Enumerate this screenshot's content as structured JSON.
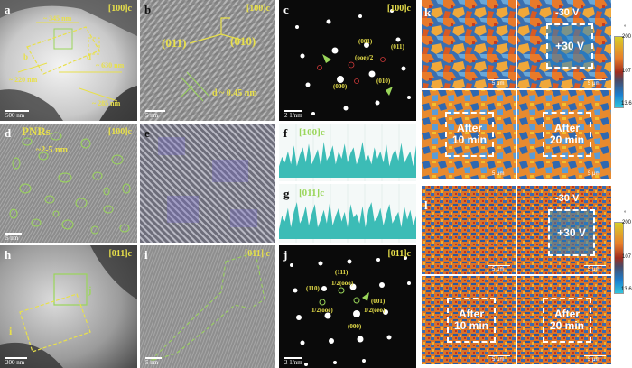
{
  "panels": {
    "a": {
      "label": "a",
      "zone": "[100]c",
      "dims": [
        "~ 345 nm",
        "b",
        "d",
        "~ 630 nm",
        "~ 220 nm",
        "~ 285 nm"
      ],
      "scale": "500 nm"
    },
    "b": {
      "label": "b",
      "zone": "[100]c",
      "plane1": "(011)",
      "plane2": "(010)",
      "spacing": "d ~ 0.45 nm",
      "scale": "5 nm"
    },
    "c": {
      "label": "c",
      "zone": "[100]c",
      "spots": [
        "(001)",
        "(011)",
        "(ooe)/2",
        "(000)",
        "(010)"
      ],
      "scale": "2 1/nm"
    },
    "d": {
      "label": "d",
      "title": "PNRs",
      "zone": "[100]c",
      "size": "~2-5 nm",
      "scale": "5 nm"
    },
    "e": {
      "label": "e"
    },
    "f": {
      "label": "f",
      "zone": "[100]c"
    },
    "g": {
      "label": "g",
      "zone": "[011]c"
    },
    "h": {
      "label": "h",
      "zone": "[011]c",
      "boxes": [
        "j",
        "i"
      ],
      "scale": "200 nm"
    },
    "i": {
      "label": "i",
      "zone": "[011] c",
      "scale": "5 nm"
    },
    "j": {
      "label": "j",
      "zone": "[011]c",
      "spots": [
        "(111)",
        "1/2(ooo)",
        "(110)",
        "1/2(ooe)",
        "(001)",
        "1/2(eeo)",
        "(000)"
      ],
      "scale": "2 1/nm"
    },
    "k": {
      "label": "k",
      "voltage_tr": "-30 V",
      "box_tr": "+30 V",
      "box_bl_1": "After",
      "box_bl_2": "10 min",
      "box_br_1": "After",
      "box_br_2": "20 min",
      "scale": "5 μm"
    },
    "l": {
      "label": "l",
      "voltage_tr": "-30 V",
      "box_tr": "+30 V",
      "box_bl_1": "After",
      "box_bl_2": "10 min",
      "box_br_1": "After",
      "box_br_2": "20 min",
      "scale": "5 μm"
    }
  },
  "colorbar": {
    "top": "200",
    "mid": "107",
    "bot": "13.6",
    "unit": "°"
  },
  "colors": {
    "yellow_annot": "#e8e04a",
    "green_annot": "#9ad65a",
    "profile_fill": "#3cbcb6"
  },
  "profiles": {
    "f": [
      30,
      55,
      40,
      70,
      35,
      85,
      30,
      60,
      80,
      40,
      90,
      35,
      55,
      75,
      30,
      95,
      45,
      60,
      85,
      35,
      70,
      50,
      90,
      40,
      65,
      80,
      35,
      55,
      95,
      45,
      60,
      35,
      80,
      50,
      70,
      40,
      88,
      30,
      60,
      75,
      45,
      92,
      38,
      55,
      70,
      30,
      85
    ],
    "g": [
      25,
      60,
      45,
      80,
      30,
      70,
      95,
      40,
      55,
      85,
      35,
      65,
      90,
      30,
      50,
      75,
      40,
      95,
      35,
      60,
      80,
      45,
      70,
      30,
      90,
      55,
      65,
      40,
      85,
      30,
      75,
      95,
      45,
      55,
      80,
      35,
      65,
      90,
      40,
      55,
      70,
      30,
      85,
      50,
      75,
      35,
      60
    ]
  }
}
